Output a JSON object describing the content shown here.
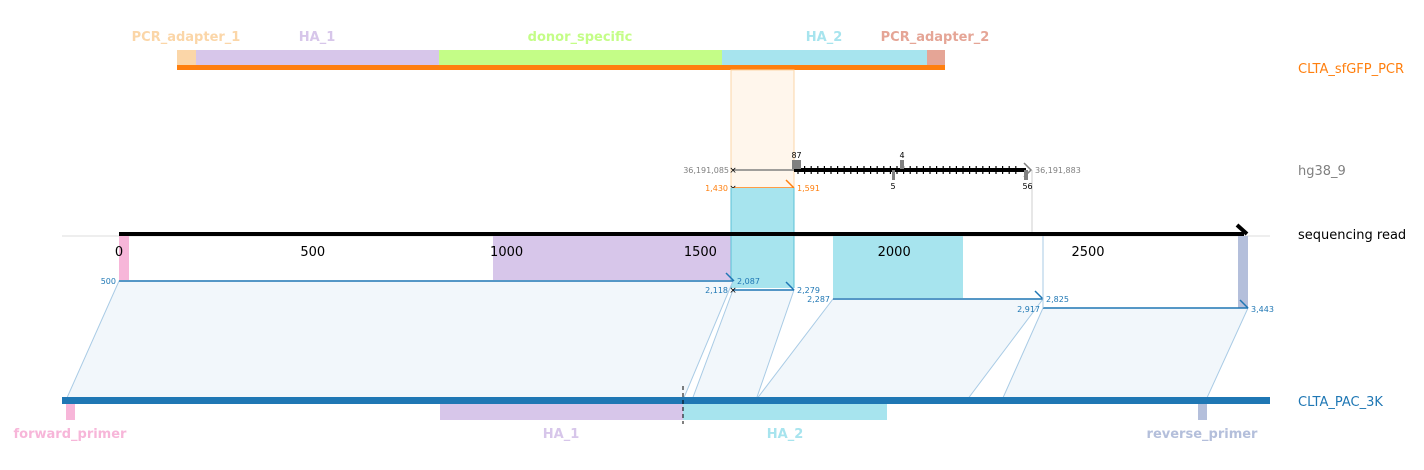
{
  "tracks": {
    "amplicon": "CLTA_sfGFP_PCR",
    "genome": "hg38_9",
    "read": "sequencing read",
    "plasmid": "CLTA_PAC_3K"
  },
  "colors": {
    "amplicon": "#ff7f0e",
    "plasmid": "#1f77b4",
    "genome": "#808080",
    "read": "#000000",
    "pcr_adapter_1": "#fbd6a8",
    "ha_1": "#d7c6ea",
    "donor_specific": "#c4fd87",
    "ha_2": "#a7e4ee",
    "pcr_adapter_2": "#e5a596",
    "forward_primer": "#f7b6d9",
    "reverse_primer": "#b4bfdb"
  },
  "amplicon_features": {
    "pcr_adapter_1": "PCR_adapter_1",
    "ha_1": "HA_1",
    "donor_specific": "donor_specific",
    "ha_2": "HA_2",
    "pcr_adapter_2": "PCR_adapter_2"
  },
  "plasmid_features": {
    "forward_primer": "forward_primer",
    "ha_1": "HA_1",
    "ha_2": "HA_2",
    "reverse_primer": "reverse_primer"
  },
  "read_axis": {
    "ticks": [
      "0",
      "500",
      "1000",
      "1500",
      "2000",
      "2500"
    ]
  },
  "genome_alignment": {
    "start": "36,191,085",
    "end": "36,191,883",
    "marks": [
      "8",
      "7",
      "4",
      "5",
      "5",
      "6"
    ]
  },
  "amplicon_alignment": {
    "start": "1,430",
    "end": "1,591"
  },
  "plasmid_alignments": [
    {
      "start": "500",
      "end": "2,087"
    },
    {
      "start": "2,118",
      "end": "2,279"
    },
    {
      "start": "2,287",
      "end": "2,825"
    },
    {
      "start": "2,917",
      "end": "3,443"
    }
  ]
}
